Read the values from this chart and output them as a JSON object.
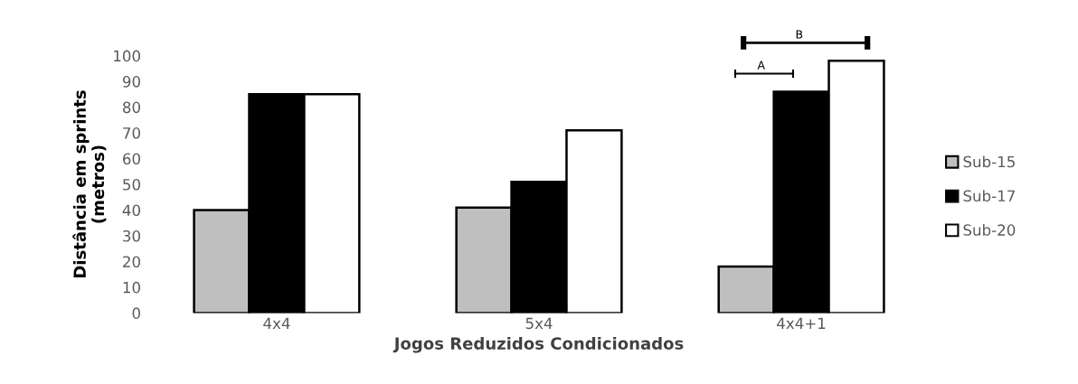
{
  "chart_data": {
    "type": "bar",
    "xlabel": "Jogos Reduzidos Condicionados",
    "ylabel": "Distância em sprints\n(metros)",
    "categories": [
      "4x4",
      "5x4",
      "4x4+1"
    ],
    "series": [
      {
        "name": "Sub-15",
        "color": "#bfbfbf",
        "values": [
          40,
          41,
          18
        ]
      },
      {
        "name": "Sub-17",
        "color": "#000000",
        "values": [
          85,
          51,
          86
        ]
      },
      {
        "name": "Sub-20",
        "color": "#ffffff",
        "values": [
          85,
          71,
          98
        ]
      }
    ],
    "ylim": [
      0,
      100
    ],
    "yticks": [
      0,
      10,
      20,
      30,
      40,
      50,
      60,
      70,
      80,
      90,
      100
    ],
    "grid": false,
    "legend": "right",
    "annotations": [
      "A",
      "B"
    ]
  }
}
